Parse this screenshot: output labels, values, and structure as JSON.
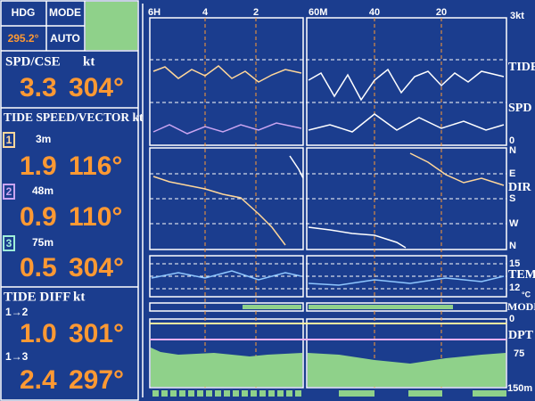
{
  "header": {
    "hdg_label": "HDG",
    "mode_label": "MODE",
    "hdg_value": "295.2°",
    "mode_value": "AUTO"
  },
  "speed": {
    "label": "SPD/CSE",
    "unit": "kt",
    "speed": "3.3",
    "course": "304°"
  },
  "tide_speed": {
    "label": "TIDE SPEED/VECTOR kt",
    "layers": [
      {
        "number": "1",
        "depth": "3m",
        "speed": "1.9",
        "direction": "116°"
      },
      {
        "number": "2",
        "depth": "48m",
        "speed": "0.9",
        "direction": "110°"
      },
      {
        "number": "3",
        "depth": "75m",
        "speed": "0.5",
        "direction": "304°"
      }
    ]
  },
  "tide_diff": {
    "label": "TIDE DIFF",
    "unit": "kt",
    "rows": [
      {
        "pair": "1→2",
        "speed": "1.0",
        "direction": "301°"
      },
      {
        "pair": "1→3",
        "speed": "2.4",
        "direction": "297°"
      }
    ]
  },
  "plot": {
    "time_axis": [
      "6H",
      "4",
      "2",
      "60M",
      "40",
      "20"
    ],
    "speed_max": "3kt",
    "labels": {
      "tide": "TIDE",
      "spd": "SPD",
      "spd_zero": "0",
      "dir": "DIR",
      "temp": "TEMP",
      "mode": "MODE",
      "dpt": "DPT"
    },
    "dir_ticks": [
      "N",
      "E",
      "S",
      "W",
      "N"
    ],
    "temp_ticks": [
      "15",
      "12",
      "°C"
    ],
    "depth_ticks": [
      "0",
      "75",
      "150m"
    ]
  }
}
